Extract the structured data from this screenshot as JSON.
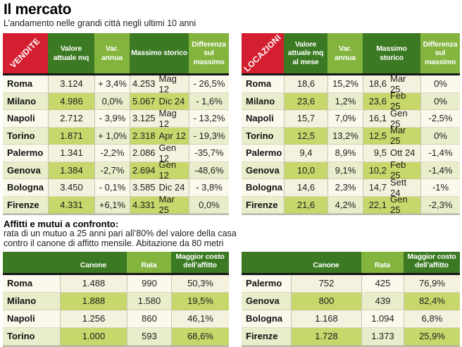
{
  "title": "Il mercato",
  "subtitle": "L’andamento nelle grandi città negli ultimi 10 anni",
  "note": {
    "heading": "Affitti e mutui a confronto:",
    "line1": "rata di un mutuo a 25 anni pari all’80% del valore della casa",
    "line2": "contro il canone di affitto mensile. Abitazione da 80 metri"
  },
  "colors": {
    "header_dark_green": "#3b7a23",
    "header_light_green": "#83b43e",
    "corner_red": "#d41f30",
    "row_even_strong": "#c8d76c",
    "row_even_light": "#e9edcc",
    "row_odd_strong": "#f4f1de",
    "row_odd_light": "#fbf9ec",
    "header_divider_black": "#161616"
  },
  "chart_data": [
    {
      "type": "table",
      "section": "top",
      "position": "left",
      "corner_label": "VENDITE",
      "columns": [
        "Valore attuale mq",
        "Var. annua",
        "Massimo storico",
        "Differenza sul massimo"
      ],
      "rows": [
        {
          "city": "Roma",
          "value": "3.124",
          "var": "+ 3,4%",
          "max": "4.253",
          "max_date": "Mag 12",
          "diff": "- 26,5%"
        },
        {
          "city": "Milano",
          "value": "4.986",
          "var": "0,0%",
          "max": "5.067",
          "max_date": "Dic 24",
          "diff": "- 1,6%"
        },
        {
          "city": "Napoli",
          "value": "2.712",
          "var": "- 3,9%",
          "max": "3.125",
          "max_date": "Mag 12",
          "diff": "- 13,2%"
        },
        {
          "city": "Torino",
          "value": "1.871",
          "var": "+ 1,0%",
          "max": "2.318",
          "max_date": "Apr 12",
          "diff": "- 19,3%"
        },
        {
          "city": "Palermo",
          "value": "1.341",
          "var": "-2,2%",
          "max": "2.086",
          "max_date": "Gen 12",
          "diff": "-35,7%"
        },
        {
          "city": "Genova",
          "value": "1.384",
          "var": "-2,7%",
          "max": "2.694",
          "max_date": "Gen 12",
          "diff": "-48,6%"
        },
        {
          "city": "Bologna",
          "value": "3.450",
          "var": "- 0,1%",
          "max": "3.585",
          "max_date": "Dic 24",
          "diff": "- 3,8%"
        },
        {
          "city": "Firenze",
          "value": "4.331",
          "var": "+6,1%",
          "max": "4.331",
          "max_date": "Mar 25",
          "diff": "0,0%"
        }
      ]
    },
    {
      "type": "table",
      "section": "top",
      "position": "right",
      "corner_label": "LOCAZIONI",
      "columns": [
        "Valore attuale mq al mese",
        "Var. annua",
        "Massimo storico",
        "Differenza sul massimo"
      ],
      "rows": [
        {
          "city": "Roma",
          "value": "18,6",
          "var": "15,2%",
          "max": "18,6",
          "max_date": "Mar 25",
          "diff": "0%"
        },
        {
          "city": "Milano",
          "value": "23,6",
          "var": "1,2%",
          "max": "23,6",
          "max_date": "Feb 25",
          "diff": "0%"
        },
        {
          "city": "Napoli",
          "value": "15,7",
          "var": "7,0%",
          "max": "16,1",
          "max_date": "Gen 25",
          "diff": "-2,5%"
        },
        {
          "city": "Torino",
          "value": "12,5",
          "var": "13,2%",
          "max": "12,5",
          "max_date": "Mar 25",
          "diff": "0%"
        },
        {
          "city": "Palermo",
          "value": "9,4",
          "var": "8,9%",
          "max": "9,5",
          "max_date": "Ott 24",
          "diff": "-1,4%"
        },
        {
          "city": "Genova",
          "value": "10,0",
          "var": "9,1%",
          "max": "10,2",
          "max_date": "Feb 25",
          "diff": "-1,4%"
        },
        {
          "city": "Bologna",
          "value": "14,6",
          "var": "2,3%",
          "max": "14,7",
          "max_date": "Sett 24",
          "diff": "-1%"
        },
        {
          "city": "Firenze",
          "value": "21,6",
          "var": "4,2%",
          "max": "22,1",
          "max_date": "Gen 25",
          "diff": "-2,3%"
        }
      ]
    },
    {
      "type": "table",
      "section": "bottom",
      "position": "left",
      "columns": [
        "Canone",
        "Rata",
        "Maggior costo dell’affitto"
      ],
      "rows": [
        {
          "city": "Roma",
          "canone": "1.488",
          "rata": "990",
          "maggior": "50,3%"
        },
        {
          "city": "Milano",
          "canone": "1.888",
          "rata": "1.580",
          "maggior": "19,5%"
        },
        {
          "city": "Napoli",
          "canone": "1.256",
          "rata": "860",
          "maggior": "46,1%"
        },
        {
          "city": "Torino",
          "canone": "1.000",
          "rata": "593",
          "maggior": "68,6%"
        }
      ]
    },
    {
      "type": "table",
      "section": "bottom",
      "position": "right",
      "columns": [
        "Canone",
        "Rata",
        "Maggior costo dell’affitto"
      ],
      "rows": [
        {
          "city": "Palermo",
          "canone": "752",
          "rata": "425",
          "maggior": "76,9%"
        },
        {
          "city": "Genova",
          "canone": "800",
          "rata": "439",
          "maggior": "82,4%"
        },
        {
          "city": "Bologna",
          "canone": "1.168",
          "rata": "1.094",
          "maggior": "6,8%"
        },
        {
          "city": "Firenze",
          "canone": "1.728",
          "rata": "1.373",
          "maggior": "25,9%"
        }
      ]
    }
  ]
}
